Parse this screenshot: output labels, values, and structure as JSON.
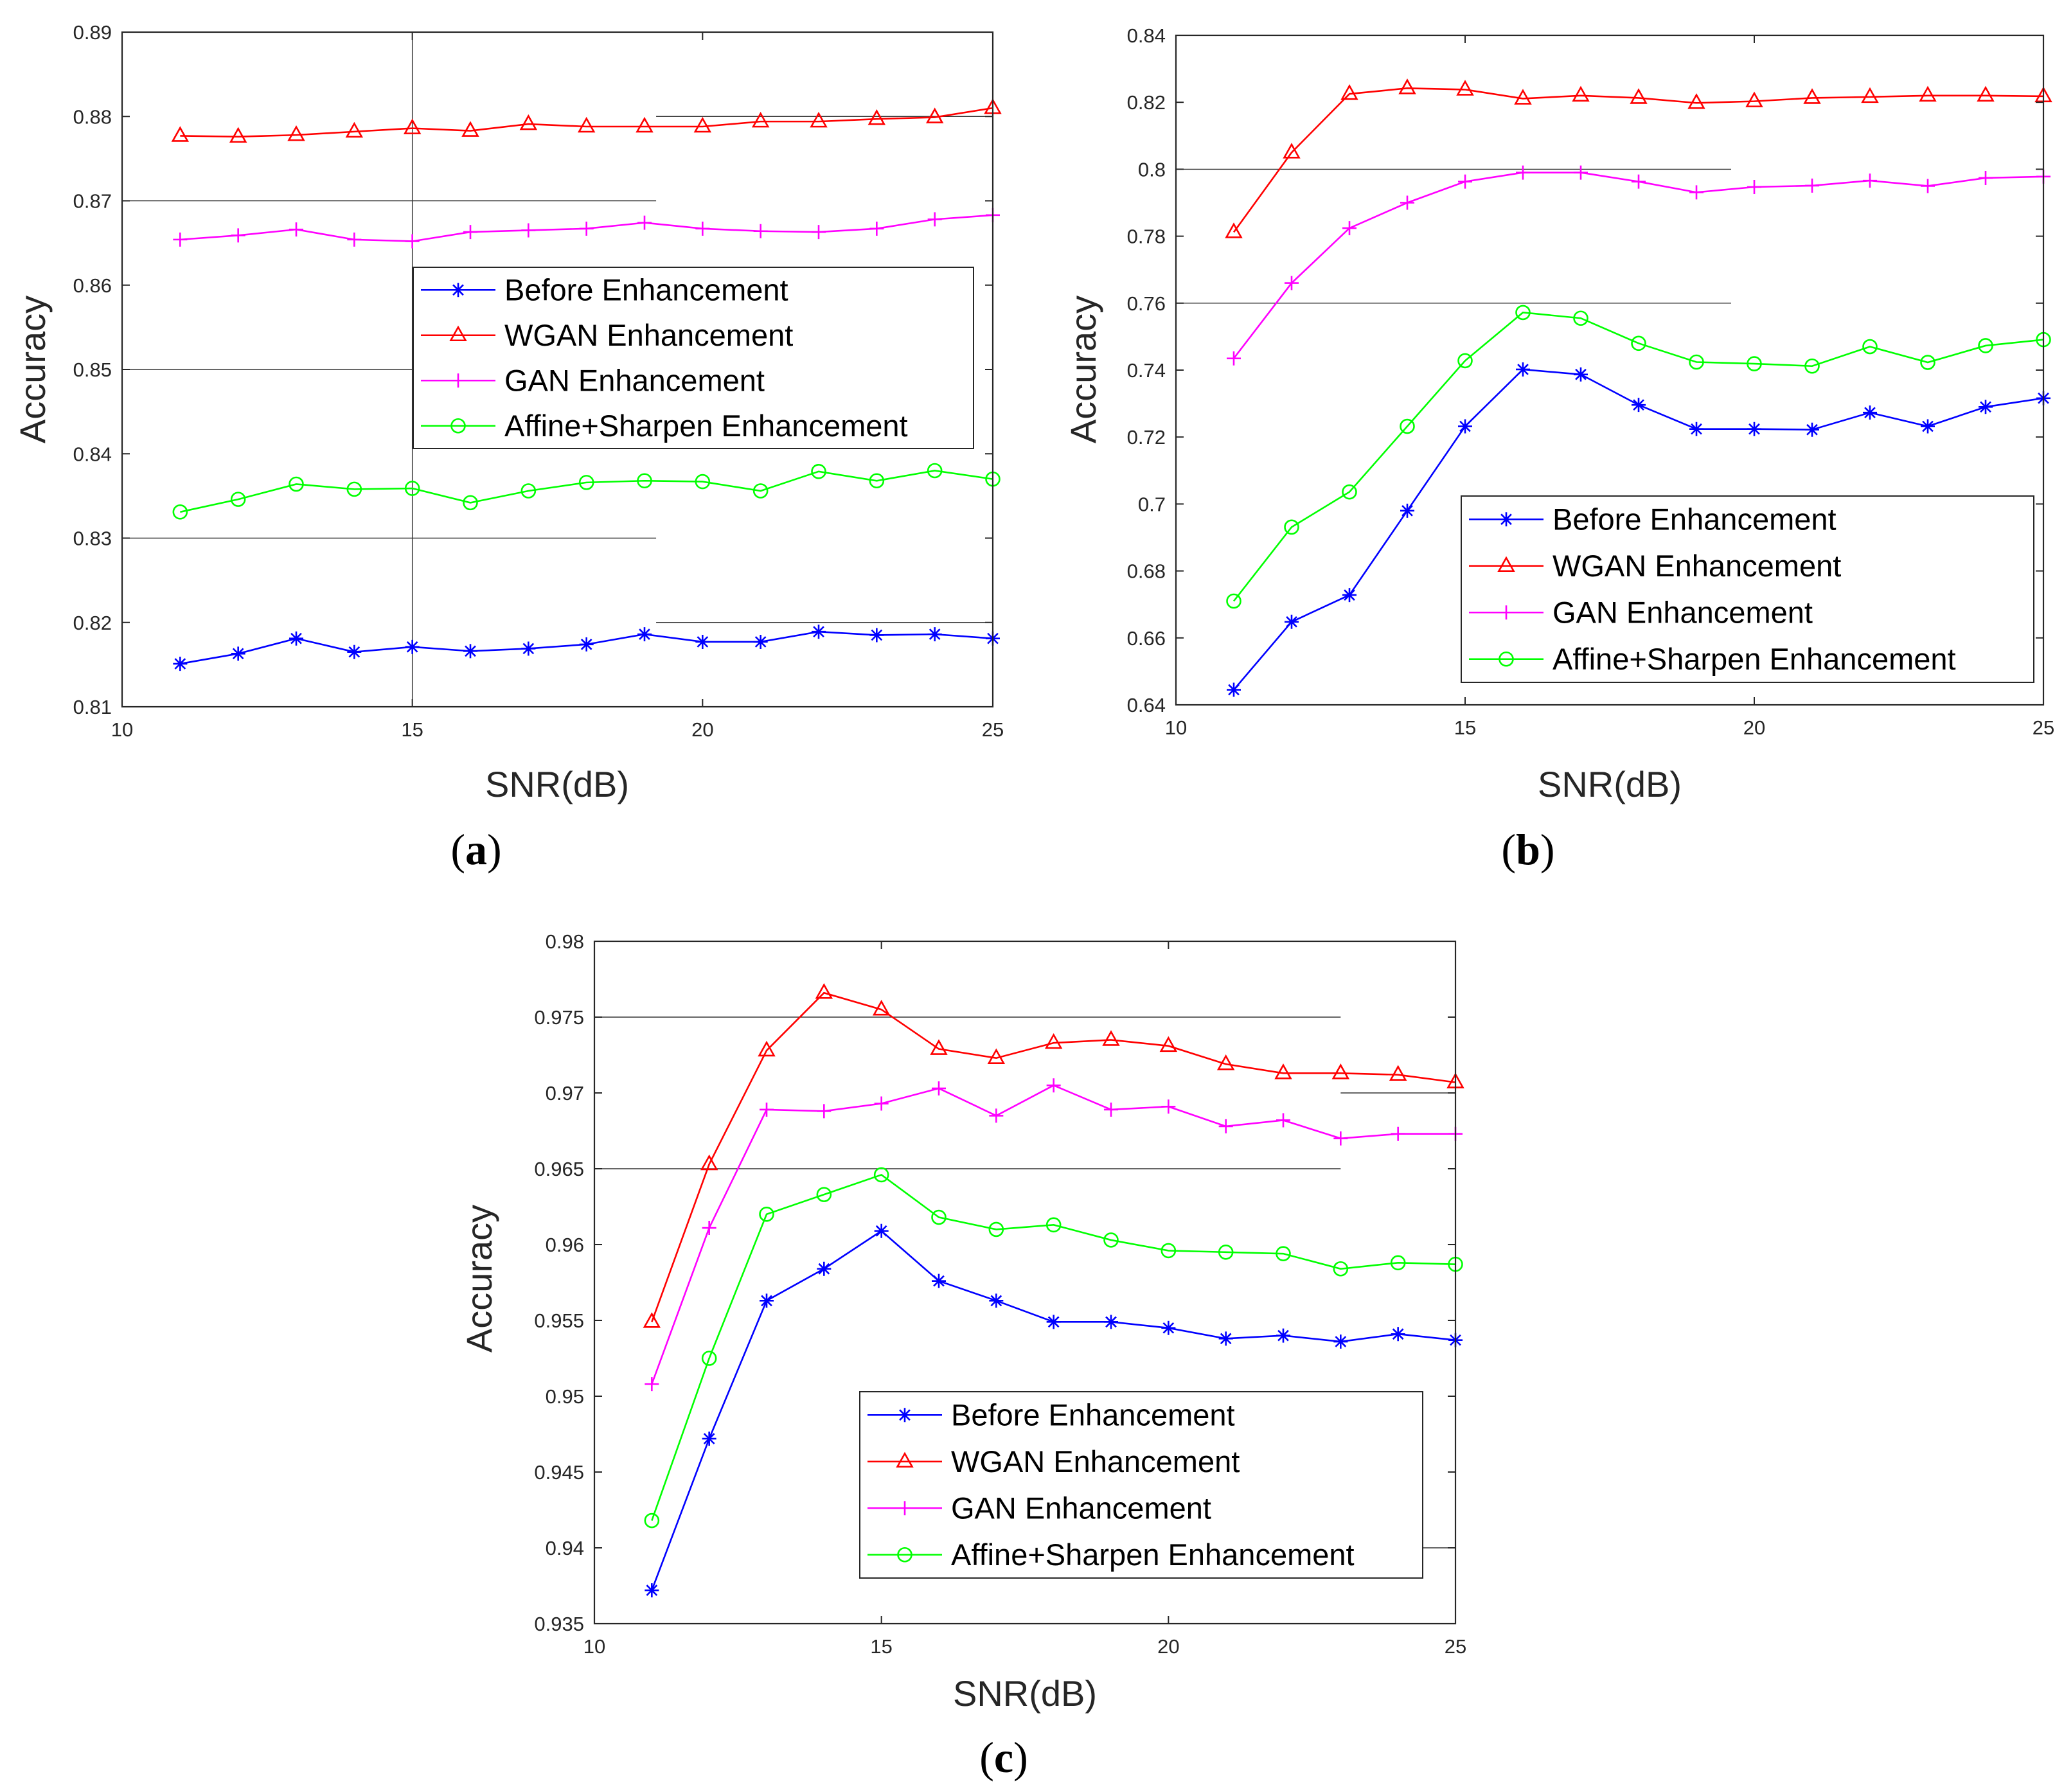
{
  "figure": {
    "panel_labels": {
      "a": "a",
      "b": "b",
      "c": "c"
    }
  },
  "chart_data": [
    {
      "id": "a",
      "type": "line",
      "panel_label": "a",
      "xlabel": "SNR(dB)",
      "ylabel": "Accuracy",
      "xlim": [
        10,
        25
      ],
      "ylim": [
        0.81,
        0.89
      ],
      "xticks": [
        10,
        15,
        20,
        25
      ],
      "yticks": [
        0.81,
        0.82,
        0.83,
        0.84,
        0.85,
        0.86,
        0.87,
        0.88,
        0.89
      ],
      "ytick_labels": [
        "0.81",
        "0.82",
        "0.83",
        "0.84",
        "0.85",
        "0.86",
        "0.87",
        "0.88",
        "0.89"
      ],
      "legend_position": "center-right",
      "x": [
        11,
        12,
        13,
        14,
        15,
        16,
        17,
        18,
        19,
        20,
        21,
        22,
        23,
        24,
        25
      ],
      "series": [
        {
          "name": "Before Enhancement",
          "color": "#0000ff",
          "marker": "star",
          "values": [
            0.8151,
            0.8163,
            0.8181,
            0.8165,
            0.8171,
            0.8166,
            0.8169,
            0.8174,
            0.8186,
            0.8177,
            0.8177,
            0.8189,
            0.8185,
            0.8186,
            0.8181
          ]
        },
        {
          "name": "WGAN Enhancement",
          "color": "#ff0000",
          "marker": "triangle",
          "values": [
            0.8777,
            0.8776,
            0.8778,
            0.8782,
            0.8786,
            0.8783,
            0.8791,
            0.8788,
            0.8788,
            0.8788,
            0.8794,
            0.8794,
            0.8797,
            0.8799,
            0.881
          ]
        },
        {
          "name": "GAN Enhancement",
          "color": "#ff00ff",
          "marker": "plus",
          "values": [
            0.8654,
            0.8659,
            0.8666,
            0.8654,
            0.8652,
            0.8663,
            0.8665,
            0.8667,
            0.8674,
            0.8667,
            0.8664,
            0.8663,
            0.8667,
            0.8678,
            0.8683
          ]
        },
        {
          "name": "Affine+Sharpen Enhancement",
          "color": "#00ff00",
          "marker": "circle",
          "values": [
            0.8331,
            0.8346,
            0.8364,
            0.8358,
            0.8359,
            0.8342,
            0.8356,
            0.8366,
            0.8368,
            0.8367,
            0.8356,
            0.8379,
            0.8368,
            0.838,
            0.837
          ]
        }
      ],
      "ref_lines": [
        {
          "y": 0.87,
          "x1": 10,
          "x2": 19.2
        },
        {
          "y": 0.85,
          "x1": 10,
          "x2": 15
        },
        {
          "y": 0.83,
          "x1": 10,
          "x2": 19.2
        },
        {
          "y": 0.88,
          "x1": 19.2,
          "x2": 25
        },
        {
          "y": 0.82,
          "x1": 19.2,
          "x2": 25
        }
      ],
      "ref_vlines": [
        {
          "x": 15,
          "y1": 0.81,
          "y2": 0.89
        }
      ]
    },
    {
      "id": "b",
      "type": "line",
      "panel_label": "b",
      "xlabel": "SNR(dB)",
      "ylabel": "Accuracy",
      "xlim": [
        10,
        25
      ],
      "ylim": [
        0.64,
        0.84
      ],
      "xticks": [
        10,
        15,
        20,
        25
      ],
      "yticks": [
        0.64,
        0.66,
        0.68,
        0.7,
        0.72,
        0.74,
        0.76,
        0.78,
        0.8,
        0.82,
        0.84
      ],
      "ytick_labels": [
        "0.64",
        "0.66",
        "0.68",
        "0.7",
        "0.72",
        "0.74",
        "0.76",
        "0.78",
        "0.8",
        "0.82",
        "0.84"
      ],
      "legend_position": "bottom-right",
      "x": [
        11,
        12,
        13,
        14,
        15,
        16,
        17,
        18,
        19,
        20,
        21,
        22,
        23,
        24,
        25
      ],
      "series": [
        {
          "name": "Before Enhancement",
          "color": "#0000ff",
          "marker": "star",
          "values": [
            0.6445,
            0.6648,
            0.6728,
            0.698,
            0.7232,
            0.7402,
            0.7387,
            0.7296,
            0.7224,
            0.7224,
            0.7222,
            0.7273,
            0.7232,
            0.729,
            0.7316
          ]
        },
        {
          "name": "WGAN Enhancement",
          "color": "#ff0000",
          "marker": "triangle",
          "values": [
            0.7812,
            0.805,
            0.8225,
            0.8242,
            0.8238,
            0.8211,
            0.822,
            0.8213,
            0.8198,
            0.8203,
            0.8213,
            0.8216,
            0.822,
            0.822,
            0.8218
          ]
        },
        {
          "name": "GAN Enhancement",
          "color": "#ff00ff",
          "marker": "plus",
          "values": [
            0.7435,
            0.766,
            0.7824,
            0.79,
            0.7963,
            0.799,
            0.799,
            0.7963,
            0.7931,
            0.7947,
            0.7951,
            0.7966,
            0.795,
            0.7974,
            0.7978
          ]
        },
        {
          "name": "Affine+Sharpen Enhancement",
          "color": "#00ff00",
          "marker": "circle",
          "values": [
            0.671,
            0.6931,
            0.7036,
            0.7232,
            0.7428,
            0.7572,
            0.7555,
            0.748,
            0.7424,
            0.7419,
            0.7412,
            0.747,
            0.7423,
            0.7473,
            0.7491
          ]
        }
      ],
      "ref_lines": [
        {
          "y": 0.8,
          "x1": 10,
          "x2": 19.6
        },
        {
          "y": 0.76,
          "x1": 10,
          "x2": 19.6
        }
      ],
      "ref_vlines": []
    },
    {
      "id": "c",
      "type": "line",
      "panel_label": "c",
      "xlabel": "SNR(dB)",
      "ylabel": "Accuracy",
      "xlim": [
        10,
        25
      ],
      "ylim": [
        0.935,
        0.98
      ],
      "xticks": [
        10,
        15,
        20,
        25
      ],
      "yticks": [
        0.935,
        0.94,
        0.945,
        0.95,
        0.955,
        0.96,
        0.965,
        0.97,
        0.975,
        0.98
      ],
      "ytick_labels": [
        "0.935",
        "0.94",
        "0.945",
        "0.95",
        "0.955",
        "0.96",
        "0.965",
        "0.97",
        "0.975",
        "0.98"
      ],
      "legend_position": "bottom-right",
      "x": [
        11,
        12,
        13,
        14,
        15,
        16,
        17,
        18,
        19,
        20,
        21,
        22,
        23,
        24,
        25
      ],
      "series": [
        {
          "name": "Before Enhancement",
          "color": "#0000ff",
          "marker": "star",
          "values": [
            0.9372,
            0.9472,
            0.9563,
            0.9584,
            0.9609,
            0.9576,
            0.9563,
            0.9549,
            0.9549,
            0.9545,
            0.9538,
            0.954,
            0.9536,
            0.9541,
            0.9537
          ]
        },
        {
          "name": "WGAN Enhancement",
          "color": "#ff0000",
          "marker": "triangle",
          "values": [
            0.9549,
            0.9653,
            0.9728,
            0.9766,
            0.9755,
            0.9729,
            0.9723,
            0.9733,
            0.9735,
            0.9731,
            0.9719,
            0.9713,
            0.9713,
            0.9712,
            0.9707
          ]
        },
        {
          "name": "GAN Enhancement",
          "color": "#ff00ff",
          "marker": "plus",
          "values": [
            0.9508,
            0.9611,
            0.9689,
            0.9688,
            0.9693,
            0.9703,
            0.9685,
            0.9705,
            0.9689,
            0.9691,
            0.9678,
            0.9682,
            0.967,
            0.9673,
            0.9673
          ]
        },
        {
          "name": "Affine+Sharpen Enhancement",
          "color": "#00ff00",
          "marker": "circle",
          "values": [
            0.9418,
            0.9525,
            0.962,
            0.9633,
            0.9646,
            0.9618,
            0.961,
            0.9613,
            0.9603,
            0.9596,
            0.9595,
            0.9594,
            0.9584,
            0.9588,
            0.9587
          ]
        }
      ],
      "ref_lines": [
        {
          "y": 0.975,
          "x1": 10,
          "x2": 23
        },
        {
          "y": 0.965,
          "x1": 10,
          "x2": 23
        },
        {
          "y": 0.97,
          "x1": 23,
          "x2": 25
        },
        {
          "y": 0.94,
          "x1": 23,
          "x2": 25
        }
      ],
      "ref_vlines": []
    }
  ]
}
